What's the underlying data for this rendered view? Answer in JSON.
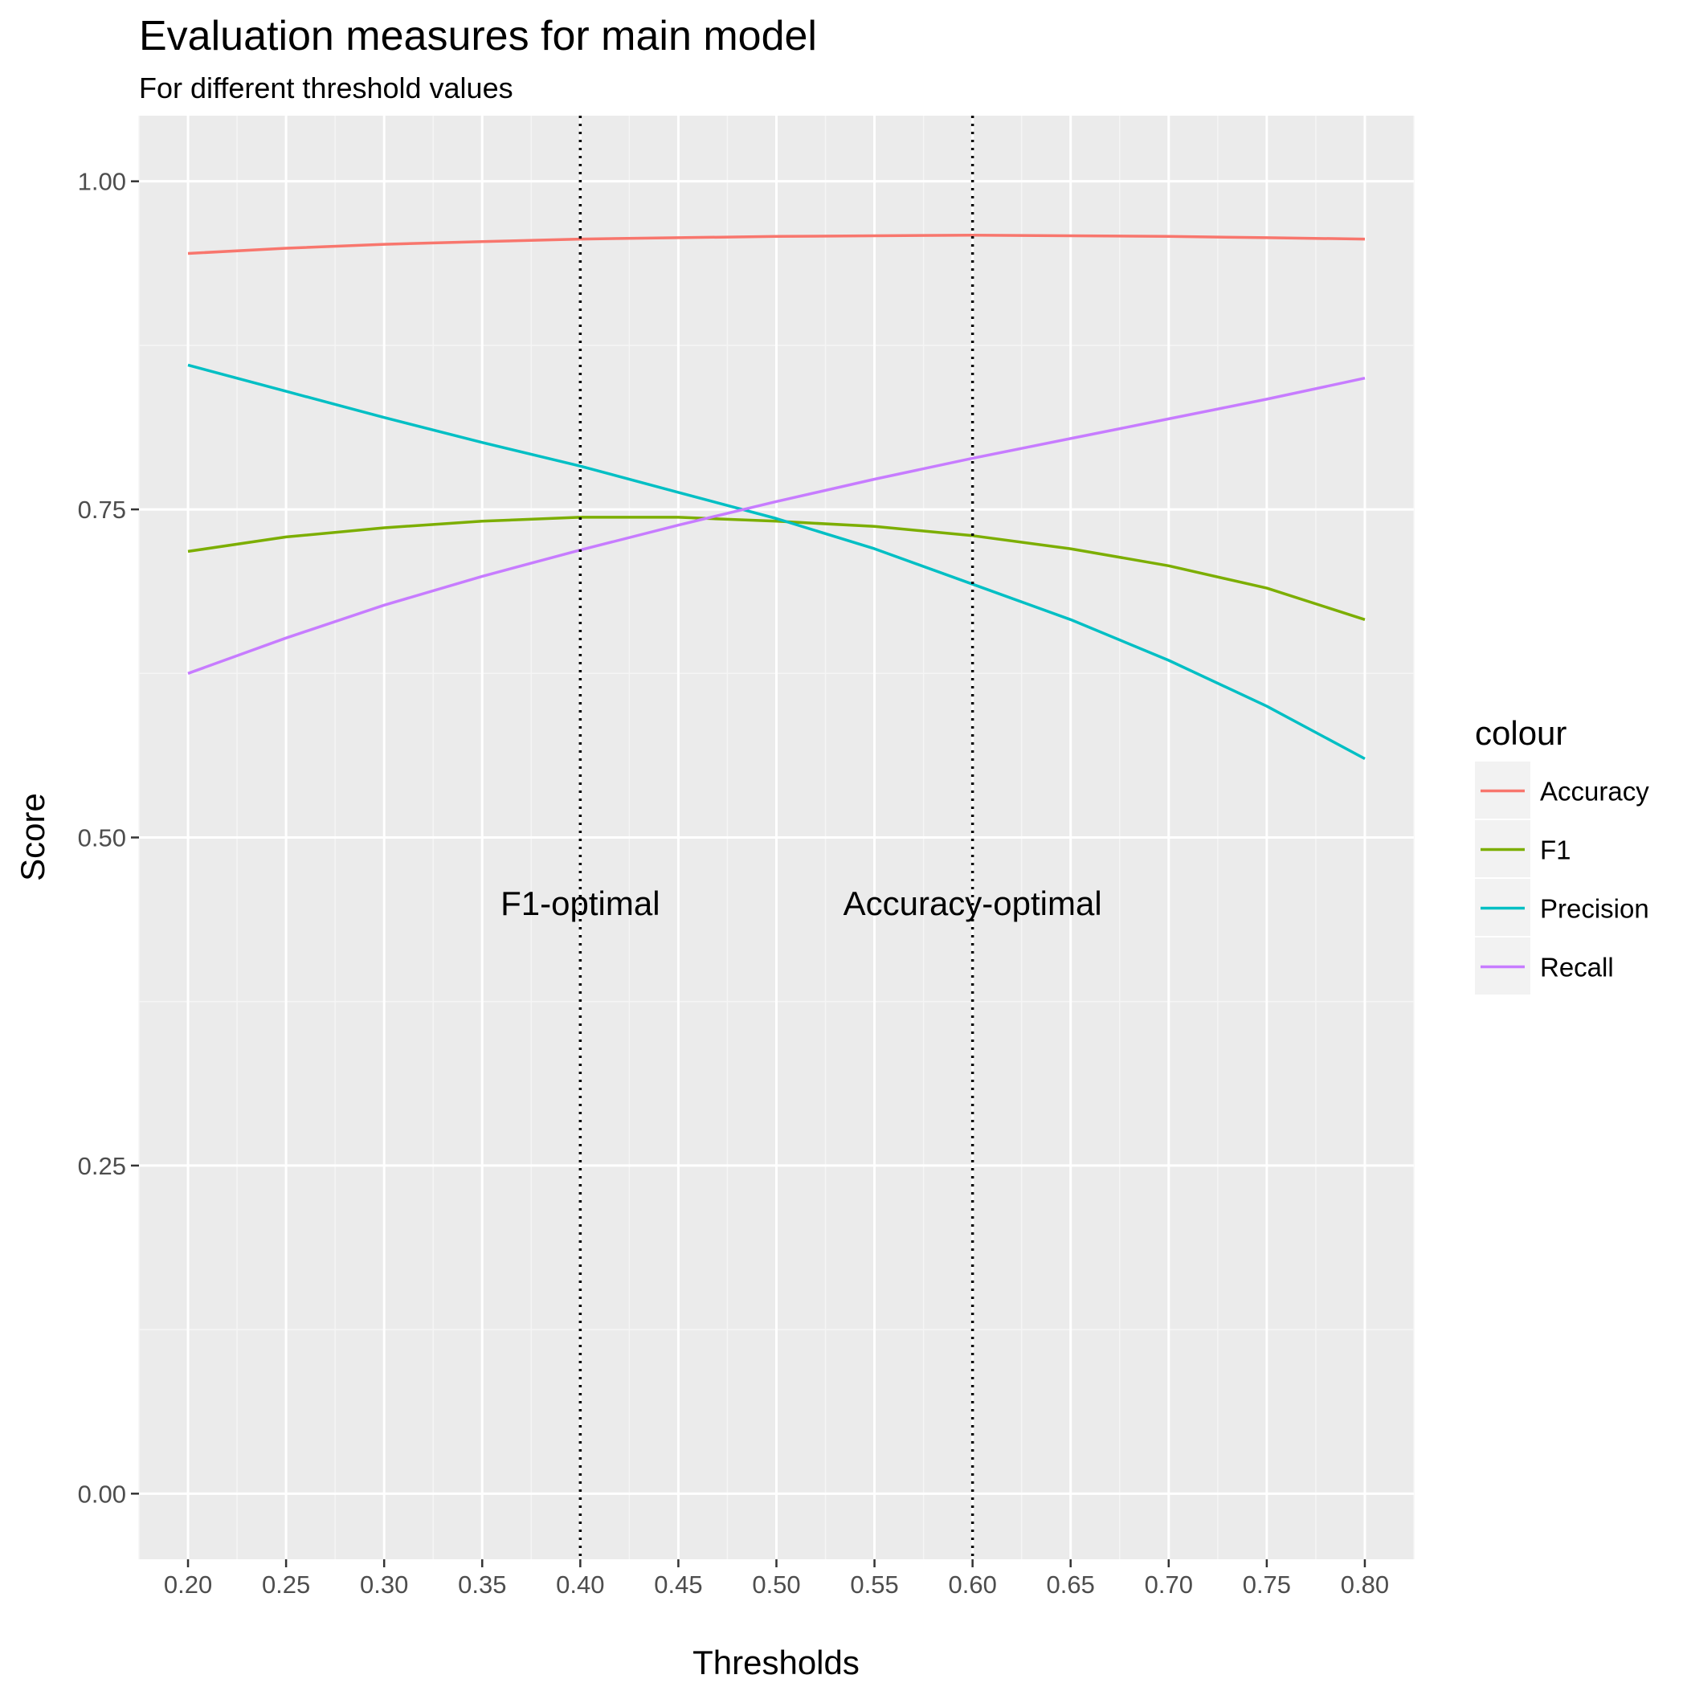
{
  "chart_data": {
    "type": "line",
    "title": "Evaluation measures for main model",
    "subtitle": "For different threshold values",
    "xlabel": "Thresholds",
    "ylabel": "Score",
    "xlim": [
      0.175,
      0.825
    ],
    "ylim": [
      -0.05,
      1.05
    ],
    "x_ticks": [
      "0.20",
      "0.25",
      "0.30",
      "0.35",
      "0.40",
      "0.45",
      "0.50",
      "0.55",
      "0.60",
      "0.65",
      "0.70",
      "0.75",
      "0.80"
    ],
    "x_tick_values": [
      0.2,
      0.25,
      0.3,
      0.35,
      0.4,
      0.45,
      0.5,
      0.55,
      0.6,
      0.65,
      0.7,
      0.75,
      0.8
    ],
    "y_ticks": [
      "0.00",
      "0.25",
      "0.50",
      "0.75",
      "1.00"
    ],
    "y_tick_values": [
      0,
      0.25,
      0.5,
      0.75,
      1.0
    ],
    "grid": true,
    "legend_title": "colour",
    "legend_position": "right",
    "x": [
      0.2,
      0.25,
      0.3,
      0.35,
      0.4,
      0.45,
      0.5,
      0.55,
      0.6,
      0.65,
      0.7,
      0.75,
      0.8
    ],
    "series": [
      {
        "name": "Accuracy",
        "color": "#F8766D",
        "values": [
          0.945,
          0.949,
          0.952,
          0.954,
          0.956,
          0.957,
          0.958,
          0.9585,
          0.959,
          0.9585,
          0.958,
          0.957,
          0.956
        ]
      },
      {
        "name": "F1",
        "color": "#7CAE00",
        "values": [
          0.718,
          0.729,
          0.736,
          0.741,
          0.744,
          0.744,
          0.741,
          0.737,
          0.73,
          0.72,
          0.707,
          0.69,
          0.666
        ]
      },
      {
        "name": "Precision",
        "color": "#00BFC4",
        "values": [
          0.86,
          0.84,
          0.82,
          0.801,
          0.783,
          0.763,
          0.743,
          0.72,
          0.693,
          0.666,
          0.635,
          0.6,
          0.56
        ]
      },
      {
        "name": "Recall",
        "color": "#C77CFF",
        "values": [
          0.625,
          0.652,
          0.677,
          0.699,
          0.719,
          0.738,
          0.756,
          0.773,
          0.789,
          0.804,
          0.819,
          0.834,
          0.85
        ]
      }
    ],
    "annotations": [
      {
        "x": 0.4,
        "label": "F1-optimal",
        "label_y": 0.45
      },
      {
        "x": 0.6,
        "label": "Accuracy-optimal",
        "label_y": 0.45
      }
    ]
  }
}
